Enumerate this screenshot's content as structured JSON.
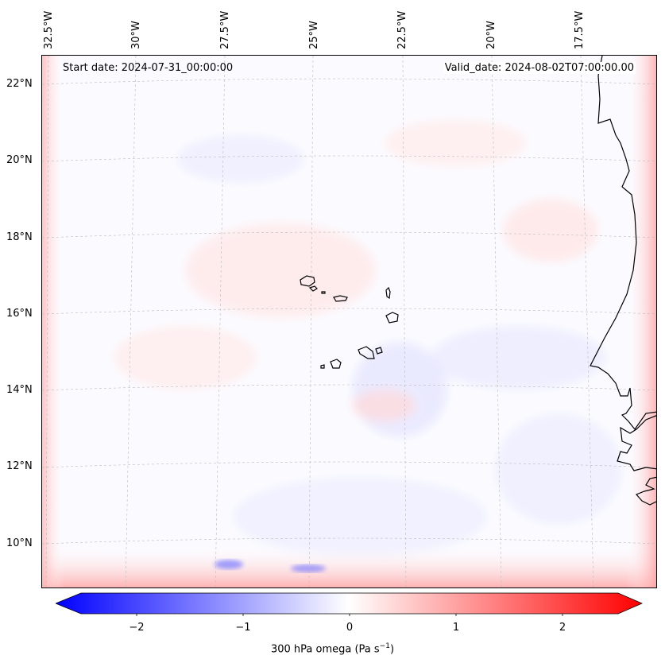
{
  "map": {
    "start_date": "Start date: 2024-07-31_00:00:00",
    "valid_date": "Valid_date: 2024-08-02T07:00:00.00",
    "lon_labels": [
      "32.5°W",
      "30°W",
      "27.5°W",
      "25°W",
      "22.5°W",
      "20°W",
      "17.5°W"
    ],
    "lat_labels": [
      "22°N",
      "20°N",
      "18°N",
      "16°N",
      "14°N",
      "12°N",
      "10°N"
    ]
  },
  "colorbar": {
    "label_prefix": "300 hPa omega (Pa s",
    "label_exp": "−1",
    "label_suffix": ")",
    "ticks": [
      "−2",
      "−1",
      "0",
      "1",
      "2"
    ],
    "neg_color": "#0000ff",
    "pos_color": "#ff0000"
  }
}
